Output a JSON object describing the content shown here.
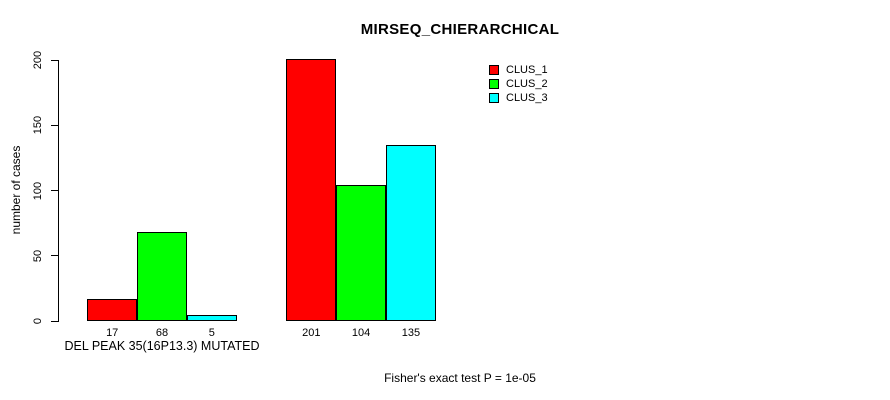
{
  "chart_data": {
    "type": "bar",
    "title": "MIRSEQ_CHIERARCHICAL",
    "ylabel": "number of cases",
    "xlabel": "",
    "ylim": [
      0,
      200
    ],
    "yticks": [
      0,
      50,
      100,
      150,
      200
    ],
    "grid": false,
    "legend_position": "top-right",
    "group_labels": [
      "DEL PEAK 35(16P13.3) MUTATED",
      ""
    ],
    "series": [
      {
        "name": "CLUS_1",
        "color": "#FF0000",
        "values": [
          17,
          201
        ]
      },
      {
        "name": "CLUS_2",
        "color": "#00FF00",
        "values": [
          68,
          104
        ]
      },
      {
        "name": "CLUS_3",
        "color": "#00FFFF",
        "values": [
          5,
          135
        ]
      }
    ],
    "bar_value_labels": [
      [
        "17",
        "68",
        "5"
      ],
      [
        "201",
        "104",
        "135"
      ]
    ],
    "annotation": "Fisher's exact test P = 1e-05"
  },
  "colors": {
    "background": "#FFFFFF",
    "axis": "#000000",
    "text": "#000000",
    "clus_1": "#FF0000",
    "clus_2": "#00FF00",
    "clus_3": "#00FFFF"
  }
}
